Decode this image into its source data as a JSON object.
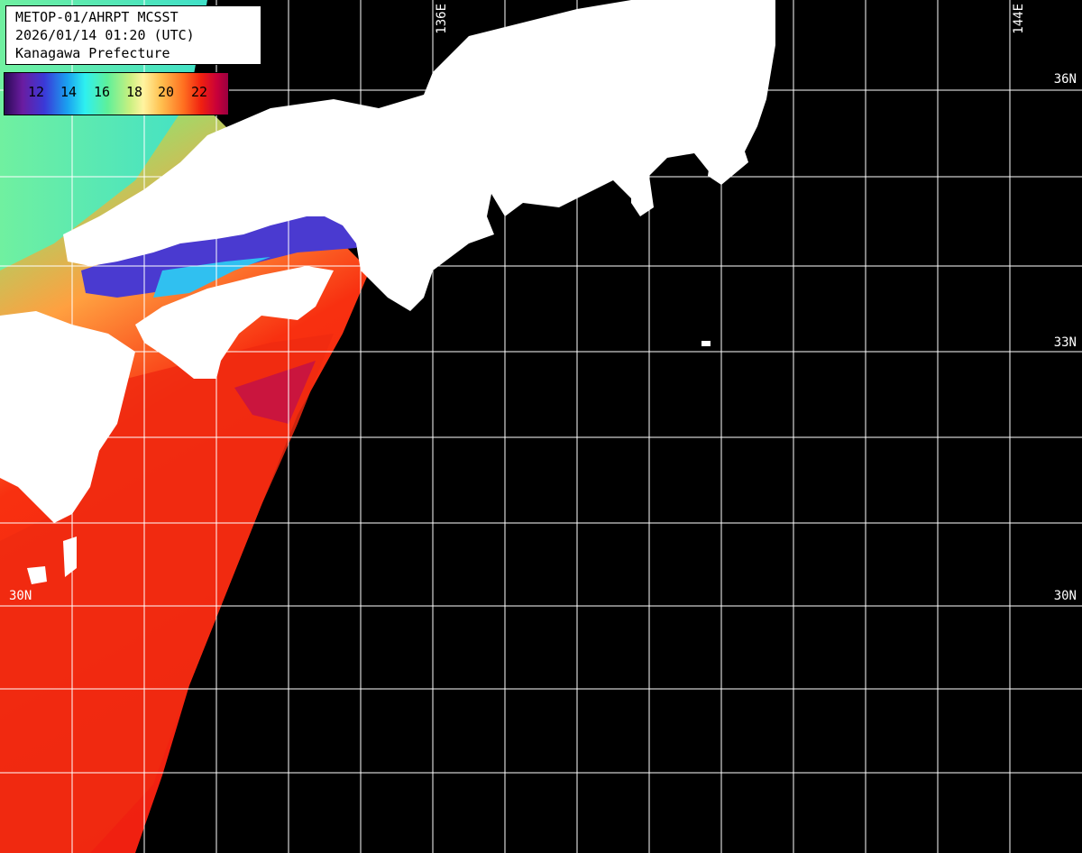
{
  "header": {
    "line1": "METOP-01/AHRPT MCSST",
    "line2": "2026/01/14 01:20 (UTC)",
    "line3": "Kanagawa Prefecture"
  },
  "colorbar": {
    "labels": [
      "12",
      "14",
      "16",
      "18",
      "20",
      "22"
    ]
  },
  "grid_labels": {
    "lat_36n": "36N",
    "lat_33n_right": "33N",
    "lat_30n_left": "30N",
    "lat_30n_right": "30N",
    "lon_136e": "136E",
    "lon_144e": "144E"
  },
  "colors": {
    "land": "#ffffff",
    "no_data": "#000000",
    "grid": "#ffffff",
    "warm": "#f02010",
    "cool": "#2ef0f0"
  }
}
